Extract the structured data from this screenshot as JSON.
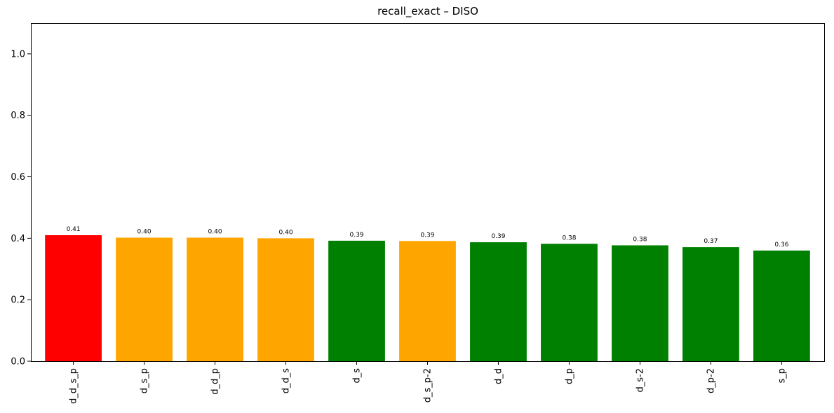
{
  "chart_data": {
    "type": "bar",
    "title": "recall_exact – DISO",
    "xlabel": "",
    "ylabel": "",
    "ylim": [
      0,
      1.1
    ],
    "yticks": [
      "0.0",
      "0.2",
      "0.4",
      "0.6",
      "0.8",
      "1.0"
    ],
    "categories": [
      "d_d_s_p",
      "d_s_p",
      "d_d_p",
      "d_d_s",
      "d_s",
      "d_s_p-2",
      "d_d",
      "d_p",
      "d_s-2",
      "d_p-2",
      "s_p"
    ],
    "values": [
      0.41,
      0.402,
      0.402,
      0.4,
      0.392,
      0.391,
      0.387,
      0.382,
      0.377,
      0.371,
      0.36
    ],
    "value_labels": [
      "0.41",
      "0.40",
      "0.40",
      "0.40",
      "0.39",
      "0.39",
      "0.39",
      "0.38",
      "0.38",
      "0.37",
      "0.36"
    ],
    "colors": [
      "#ff0000",
      "#ffa500",
      "#ffa500",
      "#ffa500",
      "#008000",
      "#ffa500",
      "#008000",
      "#008000",
      "#008000",
      "#008000",
      "#008000"
    ],
    "grid": false,
    "legend": "none"
  }
}
